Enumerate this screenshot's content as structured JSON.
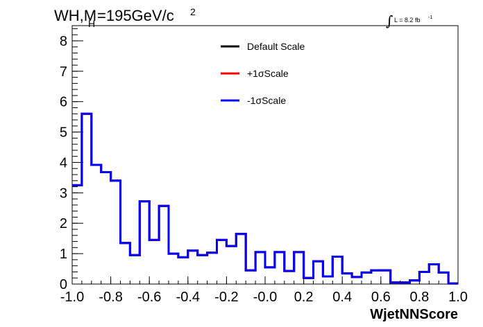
{
  "title": {
    "main": "WH,M",
    "subscript": "H",
    "rest": "=195GeV/c",
    "superscript": "2"
  },
  "lumi": {
    "symbol": "∫",
    "text": "L = 8.2 fb",
    "superscript": "-1"
  },
  "legend": [
    {
      "label": "Default Scale",
      "color": "#000000"
    },
    {
      "label": "+1σScale",
      "color": "#ff0000"
    },
    {
      "label": "-1σScale",
      "color": "#0000ff"
    }
  ],
  "chart_data": {
    "type": "line",
    "xlabel": "WjetNNScore",
    "ylabel": "",
    "xlim": [
      -1.0,
      1.0
    ],
    "ylim": [
      0,
      8.5
    ],
    "x_ticks": [
      "-1.0",
      "-0.8",
      "-0.6",
      "-0.4",
      "-0.2",
      "-0.0",
      "0.2",
      "0.4",
      "0.6",
      "0.8",
      "1.0"
    ],
    "y_ticks": [
      "0",
      "1",
      "2",
      "3",
      "4",
      "5",
      "6",
      "7",
      "8"
    ],
    "bin_edges": [
      -1.0,
      -0.95,
      -0.9,
      -0.85,
      -0.8,
      -0.75,
      -0.7,
      -0.65,
      -0.6,
      -0.55,
      -0.5,
      -0.45,
      -0.4,
      -0.35,
      -0.3,
      -0.25,
      -0.2,
      -0.15,
      -0.1,
      -0.05,
      0.0,
      0.05,
      0.1,
      0.15,
      0.2,
      0.25,
      0.3,
      0.35,
      0.4,
      0.45,
      0.5,
      0.55,
      0.6,
      0.65,
      0.7,
      0.75,
      0.8,
      0.85,
      0.9,
      0.95,
      1.0
    ],
    "series": [
      {
        "name": "Default Scale",
        "color": "#000000",
        "values": [
          3.25,
          5.6,
          3.92,
          3.68,
          3.4,
          1.35,
          0.95,
          2.72,
          1.45,
          2.57,
          1.0,
          0.88,
          1.1,
          0.95,
          1.03,
          1.45,
          1.25,
          1.65,
          0.45,
          1.05,
          0.55,
          1.05,
          0.43,
          1.05,
          0.2,
          0.75,
          0.25,
          0.9,
          0.35,
          0.23,
          0.38,
          0.45,
          0.45,
          0.05,
          0.05,
          0.12,
          0.4,
          0.65,
          0.38,
          0.02
        ]
      },
      {
        "name": "+1σScale",
        "color": "#ff0000",
        "values": [
          3.25,
          5.6,
          3.92,
          3.68,
          3.4,
          1.35,
          0.95,
          2.72,
          1.45,
          2.57,
          1.0,
          0.88,
          1.1,
          0.95,
          1.03,
          1.45,
          1.25,
          1.65,
          0.45,
          1.05,
          0.55,
          1.05,
          0.43,
          1.05,
          0.2,
          0.75,
          0.25,
          0.9,
          0.35,
          0.23,
          0.38,
          0.45,
          0.45,
          0.05,
          0.05,
          0.12,
          0.4,
          0.65,
          0.38,
          0.02
        ]
      },
      {
        "name": "-1σScale",
        "color": "#0000ff",
        "values": [
          3.25,
          5.6,
          3.92,
          3.68,
          3.4,
          1.35,
          0.95,
          2.72,
          1.45,
          2.57,
          1.0,
          0.88,
          1.1,
          0.95,
          1.03,
          1.45,
          1.25,
          1.65,
          0.45,
          1.05,
          0.55,
          1.05,
          0.43,
          1.05,
          0.2,
          0.75,
          0.25,
          0.9,
          0.35,
          0.23,
          0.38,
          0.45,
          0.45,
          0.05,
          0.05,
          0.12,
          0.4,
          0.65,
          0.38,
          0.02
        ]
      }
    ],
    "grid": false,
    "legend_position": "top-center"
  }
}
